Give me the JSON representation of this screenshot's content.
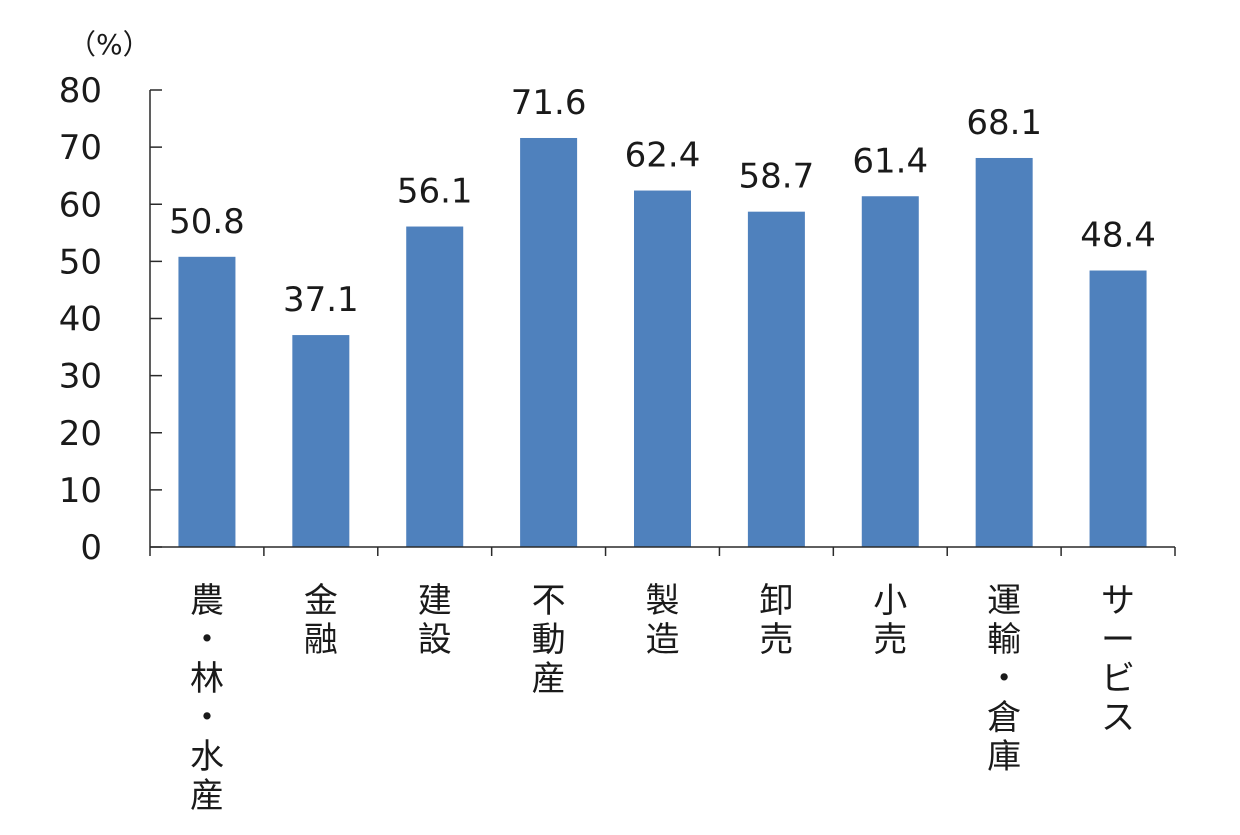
{
  "chart_data": {
    "type": "bar",
    "unit_label": "（%）",
    "categories": [
      "農・林・水産",
      "金融",
      "建設",
      "不動産",
      "製造",
      "卸売",
      "小売",
      "運輸・倉庫",
      "サービス"
    ],
    "values": [
      50.8,
      37.1,
      56.1,
      71.6,
      62.4,
      58.7,
      61.4,
      68.1,
      48.4
    ],
    "value_labels": [
      "50.8",
      "37.1",
      "56.1",
      "71.6",
      "62.4",
      "58.7",
      "61.4",
      "68.1",
      "48.4"
    ],
    "ylim": [
      0,
      80
    ],
    "yticks": [
      0,
      10,
      20,
      30,
      40,
      50,
      60,
      70,
      80
    ],
    "bar_color": "#4f81bd",
    "grid": false,
    "title": "",
    "xlabel": "",
    "ylabel": ""
  }
}
